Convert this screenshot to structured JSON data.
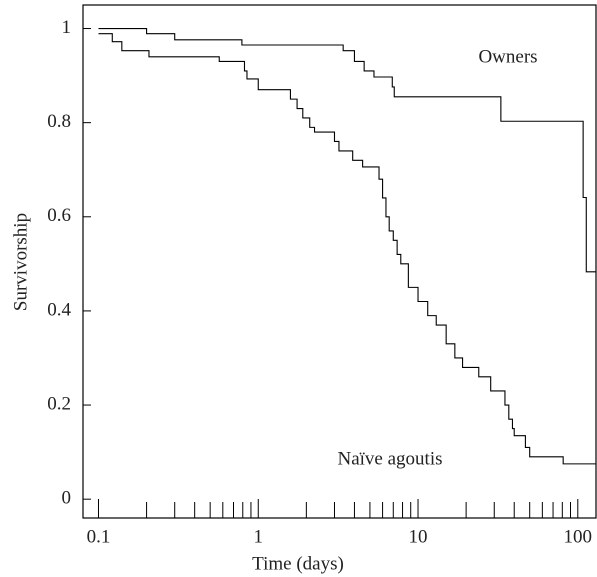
{
  "chart_data": {
    "type": "step",
    "title": null,
    "x_label": "Time (days)",
    "y_label": "Survivorship",
    "xscale": "log",
    "xlim": [
      0.08,
      130
    ],
    "ylim": [
      -0.04,
      1.05
    ],
    "xticks": [
      0.1,
      1,
      10,
      100
    ],
    "xminor_ticks": [
      0.2,
      0.3,
      0.4,
      0.5,
      0.6,
      0.7,
      0.8,
      0.9,
      2,
      3,
      4,
      5,
      6,
      7,
      8,
      9,
      20,
      30,
      40,
      50,
      60,
      70,
      80,
      90
    ],
    "yticks": [
      0,
      0.2,
      0.4,
      0.6,
      0.8,
      1
    ],
    "series": [
      {
        "name": "Owners",
        "color": "#000000",
        "x": [
          0.1,
          0.2,
          0.3,
          0.79,
          3.4,
          4,
          4.6,
          5.3,
          6.9,
          7.1,
          33,
          108,
          113,
          130
        ],
        "values": [
          1,
          0.989,
          0.976,
          0.965,
          0.953,
          0.93,
          0.91,
          0.897,
          0.876,
          0.855,
          0.803,
          0.641,
          0.483,
          0.483
        ]
      },
      {
        "name": "Naïve agoutis",
        "color": "#000000",
        "x": [
          0.1,
          0.122,
          0.14,
          0.207,
          0.57,
          0.82,
          0.85,
          1.0,
          1.59,
          1.75,
          1.9,
          2.1,
          2.25,
          3.0,
          3.2,
          3.9,
          4.5,
          5.7,
          6.0,
          6.3,
          6.6,
          7.0,
          7.4,
          7.8,
          8.7,
          10,
          11.5,
          13,
          15,
          17,
          19,
          24,
          28.5,
          35,
          37,
          39,
          40,
          47,
          50,
          81,
          130
        ],
        "values": [
          0.989,
          0.972,
          0.953,
          0.94,
          0.93,
          0.91,
          0.893,
          0.87,
          0.85,
          0.83,
          0.81,
          0.79,
          0.78,
          0.76,
          0.74,
          0.72,
          0.706,
          0.68,
          0.64,
          0.6,
          0.57,
          0.55,
          0.52,
          0.5,
          0.45,
          0.42,
          0.39,
          0.37,
          0.33,
          0.3,
          0.28,
          0.26,
          0.23,
          0.2,
          0.17,
          0.15,
          0.135,
          0.11,
          0.09,
          0.075,
          0.075
        ]
      }
    ]
  }
}
